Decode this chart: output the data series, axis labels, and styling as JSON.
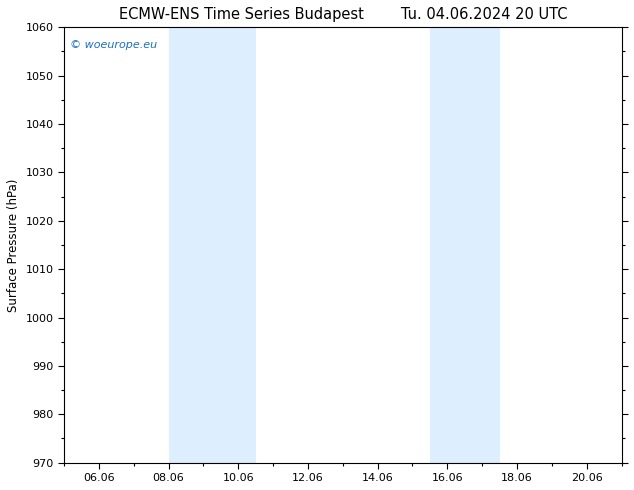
{
  "title_left": "ECMW-ENS Time Series Budapest",
  "title_right": "Tu. 04.06.2024 20 UTC",
  "ylabel": "Surface Pressure (hPa)",
  "ylim": [
    970,
    1060
  ],
  "yticks": [
    970,
    980,
    990,
    1000,
    1010,
    1020,
    1030,
    1040,
    1050,
    1060
  ],
  "xlim_start": 5.0,
  "xlim_end": 21.0,
  "xtick_labels": [
    "06.06",
    "08.06",
    "10.06",
    "12.06",
    "14.06",
    "16.06",
    "18.06",
    "20.06"
  ],
  "xtick_positions": [
    6,
    8,
    10,
    12,
    14,
    16,
    18,
    20
  ],
  "shaded_bands": [
    {
      "x_start": 8.0,
      "x_end": 9.5
    },
    {
      "x_start": 9.5,
      "x_end": 10.5
    },
    {
      "x_start": 15.5,
      "x_end": 16.5
    },
    {
      "x_start": 16.5,
      "x_end": 17.5
    }
  ],
  "band_color": "#ddeeff",
  "background_color": "#ffffff",
  "watermark_text": "© woeurope.eu",
  "watermark_color": "#1a6fc4",
  "title_fontsize": 10.5,
  "axis_label_fontsize": 8.5,
  "tick_fontsize": 8
}
